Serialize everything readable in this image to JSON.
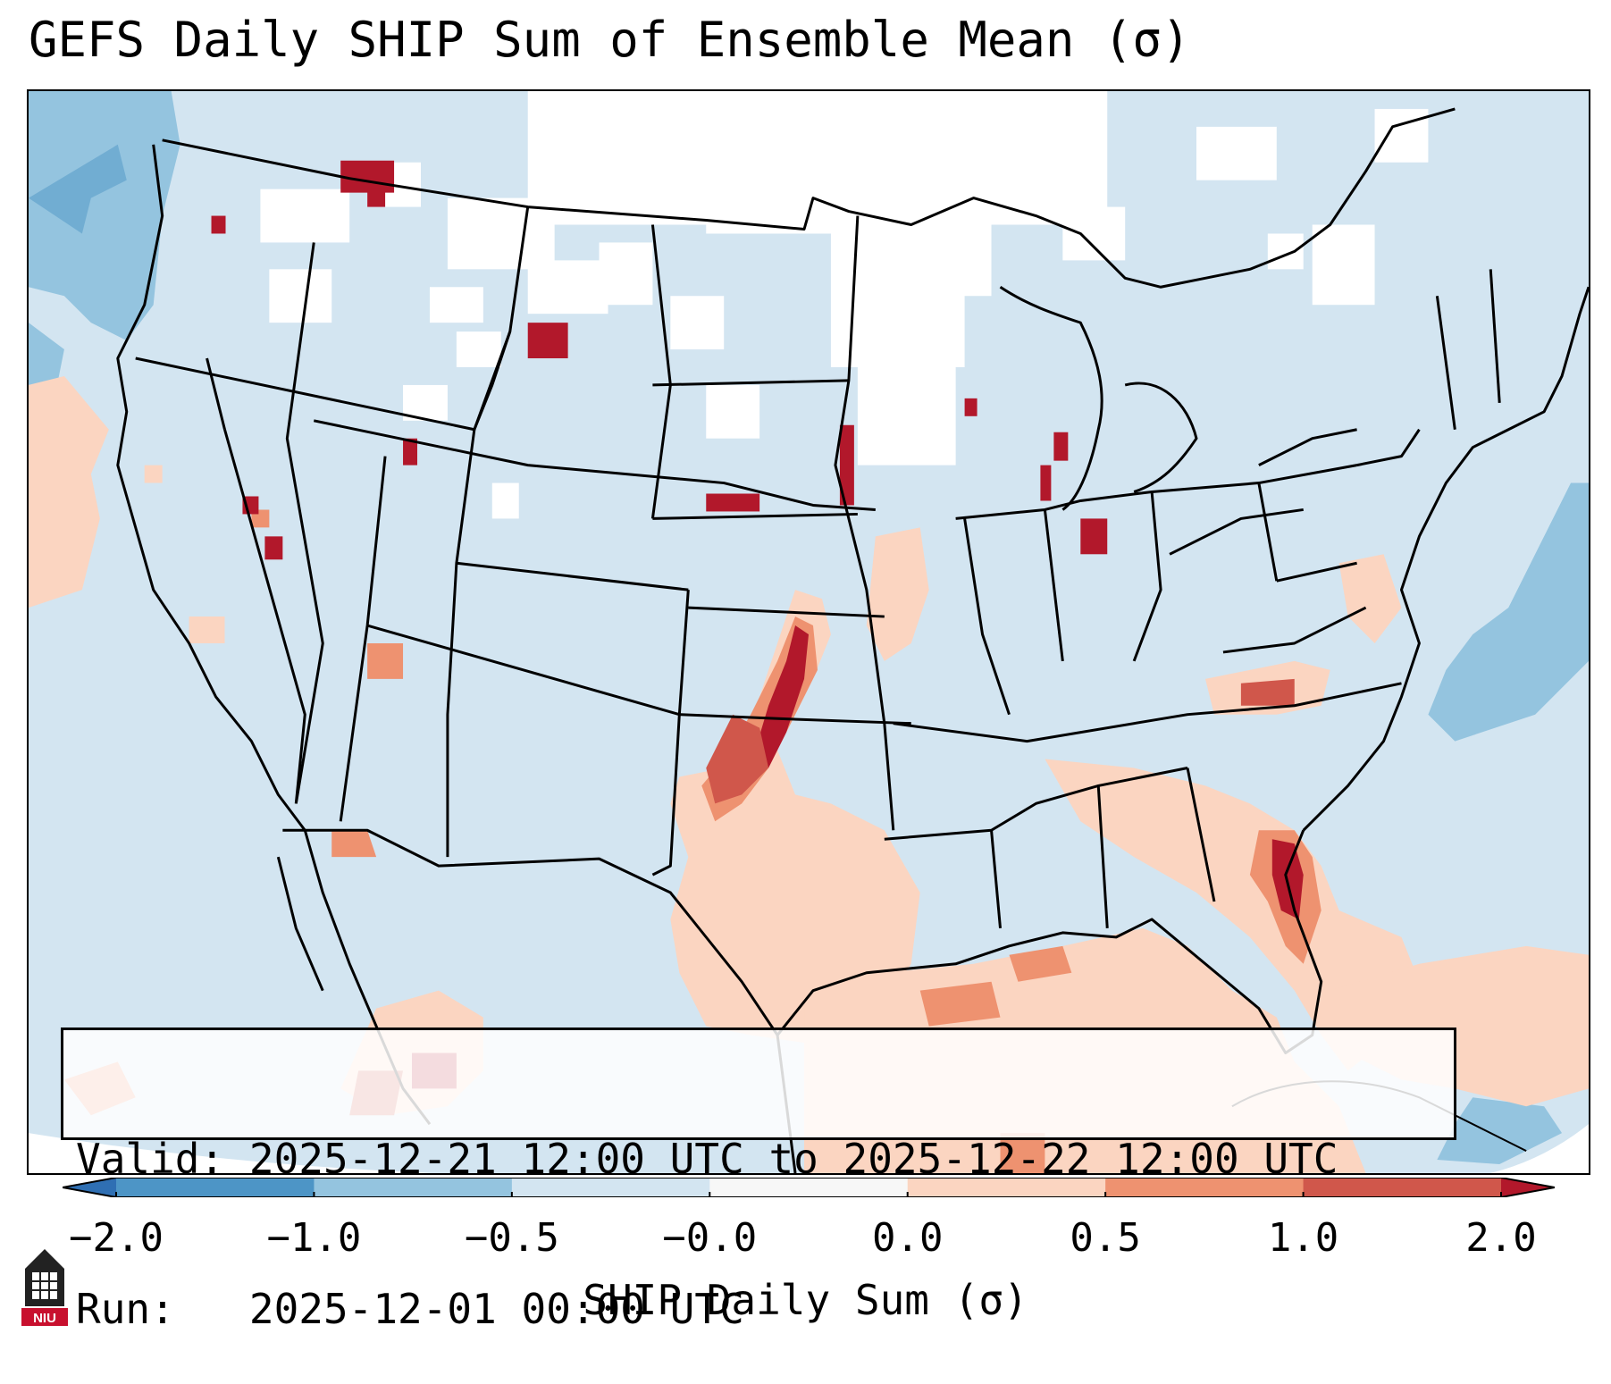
{
  "title": "GEFS Daily SHIP Sum of Ensemble Mean (σ)",
  "info": {
    "valid_label": "Valid:",
    "valid_text": "2025-12-21 12:00 UTC to 2025-12-22 12:00 UTC",
    "run_label": "Run:",
    "run_text": "2025-12-01 00:00 UTC"
  },
  "colorbar": {
    "label": "SHIP Daily Sum (σ)",
    "ticks": [
      "−2.0",
      "−1.0",
      "−0.5",
      "−0.0",
      "0.0",
      "0.5",
      "1.0",
      "2.0"
    ],
    "colors": [
      "#2f6fb3",
      "#4d95c6",
      "#94c4df",
      "#d3e5f1",
      "#f7f7f7",
      "#fbd5c1",
      "#ee9270",
      "#d0574b",
      "#b2182b"
    ],
    "extend": "both"
  },
  "map": {
    "region": "Contiguous United States",
    "projection": "Lambert conformal",
    "background_level": "-0.5 to -0.0",
    "elevated_areas": [
      "central Oklahoma",
      "north Texas",
      "eastern Kansas",
      "southeastern Georgia",
      "northeast Florida",
      "Gulf of Mexico",
      "southwestern Virginia",
      "northwestern Iowa",
      "south-central Nebraska",
      "northwestern Wyoming",
      "southern Indiana"
    ],
    "depressed_areas": [
      "Pacific off Washington",
      "western Atlantic"
    ]
  },
  "logo": {
    "text": "NIU"
  }
}
